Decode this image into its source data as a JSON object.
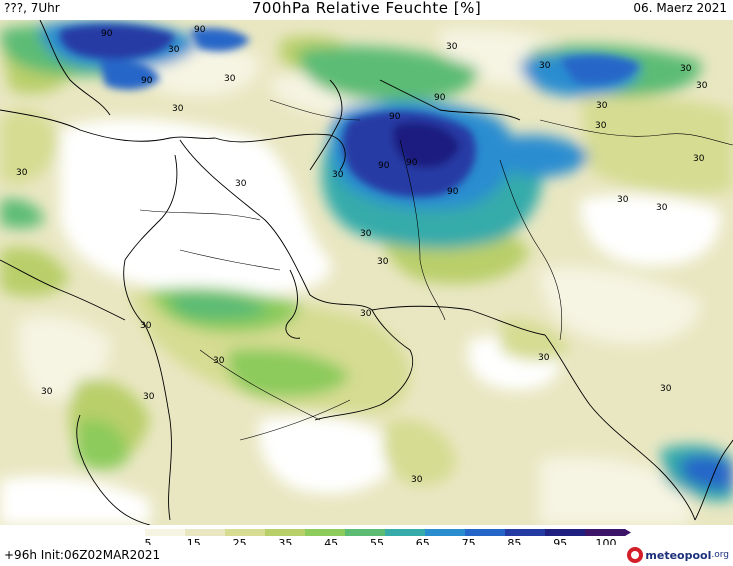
{
  "header": {
    "left": "???, 7Uhr",
    "title": "700hPa Relative Feuchte [%]",
    "date": "06. Maerz 2021"
  },
  "legend": {
    "ticks": [
      "5",
      "15",
      "25",
      "35",
      "45",
      "55",
      "65",
      "75",
      "85",
      "95",
      "100"
    ],
    "colors": [
      "#ffffff",
      "#f6f4e2",
      "#e9e7c2",
      "#d6dc92",
      "#b9cf6a",
      "#8ccb5c",
      "#5cbc74",
      "#36abaa",
      "#2a8dd0",
      "#2566c8",
      "#253ba4",
      "#1f1f80",
      "#3c1468"
    ]
  },
  "footer": {
    "left": "+96h Init:06Z02MAR2021",
    "brand": "meteopool",
    "tld": ".org"
  },
  "map_labels": [
    {
      "value": "90"
    },
    {
      "value": "90"
    },
    {
      "value": "90"
    },
    {
      "value": "90"
    },
    {
      "value": "90"
    },
    {
      "value": "90"
    },
    {
      "value": "90"
    },
    {
      "value": "90"
    },
    {
      "value": "30"
    },
    {
      "value": "30"
    },
    {
      "value": "30"
    },
    {
      "value": "30"
    },
    {
      "value": "30"
    },
    {
      "value": "30"
    },
    {
      "value": "30"
    },
    {
      "value": "30"
    },
    {
      "value": "30"
    },
    {
      "value": "30"
    },
    {
      "value": "30"
    },
    {
      "value": "30"
    },
    {
      "value": "30"
    },
    {
      "value": "30"
    },
    {
      "value": "30"
    },
    {
      "value": "30"
    },
    {
      "value": "30"
    },
    {
      "value": "30"
    },
    {
      "value": "30"
    },
    {
      "value": "30"
    },
    {
      "value": "30"
    },
    {
      "value": "30"
    },
    {
      "value": "30"
    },
    {
      "value": "30"
    },
    {
      "value": "30"
    }
  ]
}
